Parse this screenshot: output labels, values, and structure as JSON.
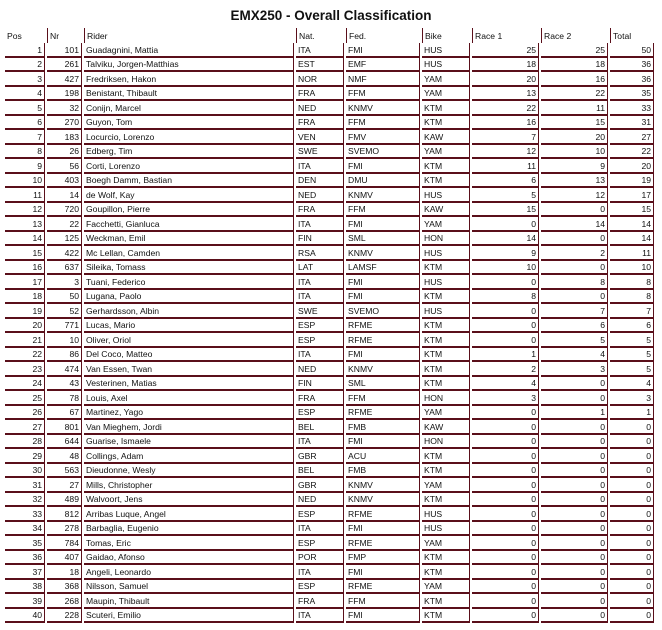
{
  "title": "EMX250 - Overall Classification",
  "columns": [
    "Pos",
    "Nr",
    "Rider",
    "Nat.",
    "Fed.",
    "Bike",
    "Race 1",
    "Race 2",
    "Total"
  ],
  "rows": [
    [
      "1",
      "101",
      "Guadagnini, Mattia",
      "ITA",
      "FMI",
      "HUS",
      "25",
      "25",
      "50"
    ],
    [
      "2",
      "261",
      "Talviku, Jorgen-Matthias",
      "EST",
      "EMF",
      "HUS",
      "18",
      "18",
      "36"
    ],
    [
      "3",
      "427",
      "Fredriksen, Hakon",
      "NOR",
      "NMF",
      "YAM",
      "20",
      "16",
      "36"
    ],
    [
      "4",
      "198",
      "Benistant, Thibault",
      "FRA",
      "FFM",
      "YAM",
      "13",
      "22",
      "35"
    ],
    [
      "5",
      "32",
      "Conijn, Marcel",
      "NED",
      "KNMV",
      "KTM",
      "22",
      "11",
      "33"
    ],
    [
      "6",
      "270",
      "Guyon, Tom",
      "FRA",
      "FFM",
      "KTM",
      "16",
      "15",
      "31"
    ],
    [
      "7",
      "183",
      "Locurcio, Lorenzo",
      "VEN",
      "FMV",
      "KAW",
      "7",
      "20",
      "27"
    ],
    [
      "8",
      "26",
      "Edberg, Tim",
      "SWE",
      "SVEMO",
      "YAM",
      "12",
      "10",
      "22"
    ],
    [
      "9",
      "56",
      "Corti, Lorenzo",
      "ITA",
      "FMI",
      "KTM",
      "11",
      "9",
      "20"
    ],
    [
      "10",
      "403",
      "Boegh Damm, Bastian",
      "DEN",
      "DMU",
      "KTM",
      "6",
      "13",
      "19"
    ],
    [
      "11",
      "14",
      "de Wolf, Kay",
      "NED",
      "KNMV",
      "HUS",
      "5",
      "12",
      "17"
    ],
    [
      "12",
      "720",
      "Goupillon, Pierre",
      "FRA",
      "FFM",
      "KAW",
      "15",
      "0",
      "15"
    ],
    [
      "13",
      "22",
      "Facchetti, Gianluca",
      "ITA",
      "FMI",
      "YAM",
      "0",
      "14",
      "14"
    ],
    [
      "14",
      "125",
      "Weckman, Emil",
      "FIN",
      "SML",
      "HON",
      "14",
      "0",
      "14"
    ],
    [
      "15",
      "422",
      "Mc Lellan, Camden",
      "RSA",
      "KNMV",
      "HUS",
      "9",
      "2",
      "11"
    ],
    [
      "16",
      "637",
      "Sileika, Tomass",
      "LAT",
      "LAMSF",
      "KTM",
      "10",
      "0",
      "10"
    ],
    [
      "17",
      "3",
      "Tuani, Federico",
      "ITA",
      "FMI",
      "HUS",
      "0",
      "8",
      "8"
    ],
    [
      "18",
      "50",
      "Lugana, Paolo",
      "ITA",
      "FMI",
      "KTM",
      "8",
      "0",
      "8"
    ],
    [
      "19",
      "52",
      "Gerhardsson, Albin",
      "SWE",
      "SVEMO",
      "HUS",
      "0",
      "7",
      "7"
    ],
    [
      "20",
      "771",
      "Lucas, Mario",
      "ESP",
      "RFME",
      "KTM",
      "0",
      "6",
      "6"
    ],
    [
      "21",
      "10",
      "Oliver, Oriol",
      "ESP",
      "RFME",
      "KTM",
      "0",
      "5",
      "5"
    ],
    [
      "22",
      "86",
      "Del Coco, Matteo",
      "ITA",
      "FMI",
      "KTM",
      "1",
      "4",
      "5"
    ],
    [
      "23",
      "474",
      "Van Essen, Twan",
      "NED",
      "KNMV",
      "KTM",
      "2",
      "3",
      "5"
    ],
    [
      "24",
      "43",
      "Vesterinen, Matias",
      "FIN",
      "SML",
      "KTM",
      "4",
      "0",
      "4"
    ],
    [
      "25",
      "78",
      "Louis, Axel",
      "FRA",
      "FFM",
      "HON",
      "3",
      "0",
      "3"
    ],
    [
      "26",
      "67",
      "Martinez, Yago",
      "ESP",
      "RFME",
      "YAM",
      "0",
      "1",
      "1"
    ],
    [
      "27",
      "801",
      "Van Mieghem, Jordi",
      "BEL",
      "FMB",
      "KAW",
      "0",
      "0",
      "0"
    ],
    [
      "28",
      "644",
      "Guarise, Ismaele",
      "ITA",
      "FMI",
      "HON",
      "0",
      "0",
      "0"
    ],
    [
      "29",
      "48",
      "Collings, Adam",
      "GBR",
      "ACU",
      "KTM",
      "0",
      "0",
      "0"
    ],
    [
      "30",
      "563",
      "Dieudonne, Wesly",
      "BEL",
      "FMB",
      "KTM",
      "0",
      "0",
      "0"
    ],
    [
      "31",
      "27",
      "Mills, Christopher",
      "GBR",
      "KNMV",
      "YAM",
      "0",
      "0",
      "0"
    ],
    [
      "32",
      "489",
      "Walvoort, Jens",
      "NED",
      "KNMV",
      "KTM",
      "0",
      "0",
      "0"
    ],
    [
      "33",
      "812",
      "Arribas Luque, Angel",
      "ESP",
      "RFME",
      "HUS",
      "0",
      "0",
      "0"
    ],
    [
      "34",
      "278",
      "Barbaglia, Eugenio",
      "ITA",
      "FMI",
      "HUS",
      "0",
      "0",
      "0"
    ],
    [
      "35",
      "784",
      "Tomas, Eric",
      "ESP",
      "RFME",
      "YAM",
      "0",
      "0",
      "0"
    ],
    [
      "36",
      "407",
      "Gaidao, Afonso",
      "POR",
      "FMP",
      "KTM",
      "0",
      "0",
      "0"
    ],
    [
      "37",
      "18",
      "Angeli, Leonardo",
      "ITA",
      "FMI",
      "KTM",
      "0",
      "0",
      "0"
    ],
    [
      "38",
      "368",
      "Nilsson, Samuel",
      "ESP",
      "RFME",
      "YAM",
      "0",
      "0",
      "0"
    ],
    [
      "39",
      "268",
      "Maupin, Thibault",
      "FRA",
      "FFM",
      "KTM",
      "0",
      "0",
      "0"
    ],
    [
      "40",
      "228",
      "Scuteri, Emilio",
      "ITA",
      "FMI",
      "KTM",
      "0",
      "0",
      "0"
    ]
  ]
}
